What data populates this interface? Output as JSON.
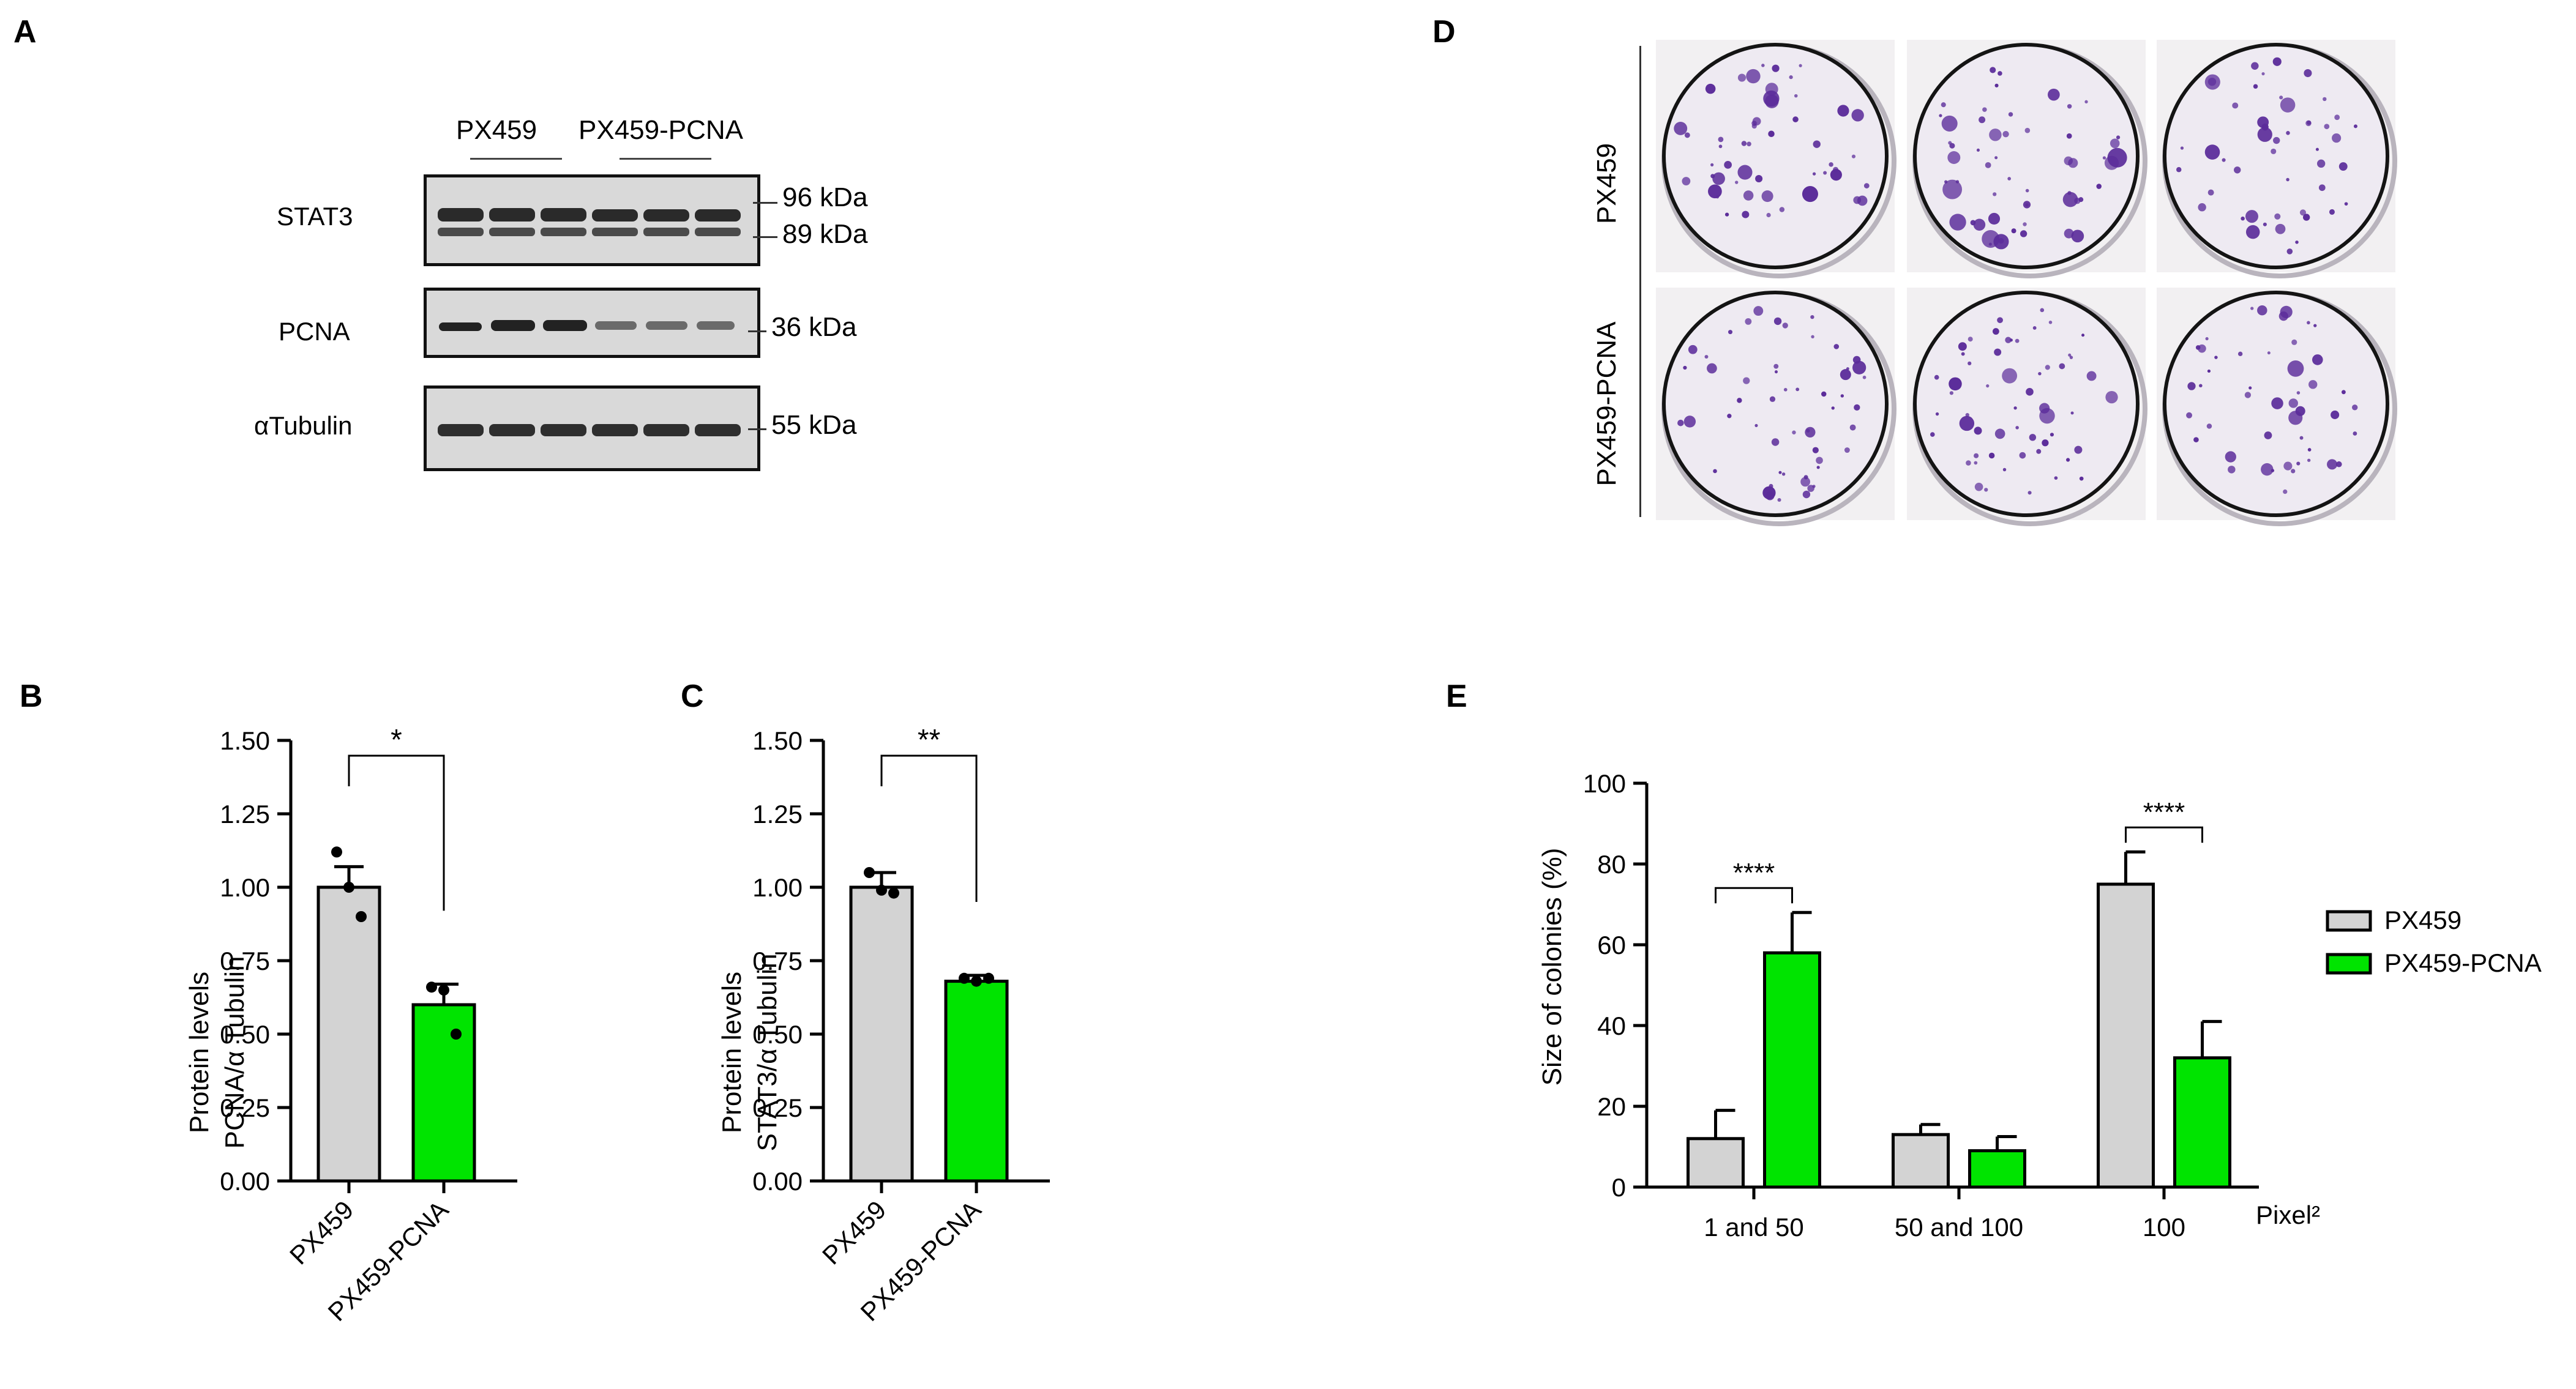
{
  "panels": {
    "a": "A",
    "b": "B",
    "c": "C",
    "d": "D",
    "e": "E"
  },
  "western_blot": {
    "lane_groups": [
      "PX459",
      "PX459-PCNA"
    ],
    "rows": [
      {
        "label": "STAT3",
        "markers": [
          "96 kDa",
          "89 kDa"
        ]
      },
      {
        "label": "PCNA",
        "markers": [
          "36 kDa"
        ]
      },
      {
        "label": "αTubulin",
        "markers": [
          "55 kDa"
        ]
      }
    ]
  },
  "colony_images": {
    "row_labels": [
      "PX459",
      "PX459-PCNA"
    ],
    "colors": {
      "plate_bg": "#eeeaf2",
      "colony": "#5b2c9a"
    }
  },
  "colors": {
    "px459": "#d3d3d3",
    "pcna": "#00e400",
    "outline": "#000000"
  },
  "chart_data": [
    {
      "type": "bar",
      "panel": "B",
      "categories": [
        "PX459",
        "PX459-PCNA"
      ],
      "values": [
        1.0,
        0.6
      ],
      "errors": [
        0.07,
        0.07
      ],
      "points": [
        [
          1.12,
          1.0,
          0.9
        ],
        [
          0.66,
          0.65,
          0.5
        ]
      ],
      "ylabel": [
        "Protein levels",
        "PCNA/α Tubulin"
      ],
      "ylim": [
        0,
        1.5
      ],
      "yticks": [
        "0.00",
        "0.25",
        "0.50",
        "0.75",
        "1.00",
        "1.25",
        "1.50"
      ],
      "significance": "*"
    },
    {
      "type": "bar",
      "panel": "C",
      "categories": [
        "PX459",
        "PX459-PCNA"
      ],
      "values": [
        1.0,
        0.68
      ],
      "errors": [
        0.05,
        0.02
      ],
      "points": [
        [
          1.05,
          0.99,
          0.98
        ],
        [
          0.69,
          0.68,
          0.69
        ]
      ],
      "ylabel": [
        "Protein levels",
        "STAT3/α Tubulin"
      ],
      "ylim": [
        0,
        1.5
      ],
      "yticks": [
        "0.00",
        "0.25",
        "0.50",
        "0.75",
        "1.00",
        "1.25",
        "1.50"
      ],
      "significance": "**"
    },
    {
      "type": "bar",
      "panel": "E",
      "categories": [
        "1 and 50",
        "50 and 100",
        "100"
      ],
      "x_unit": "Pixel²",
      "series": [
        {
          "name": "PX459",
          "values": [
            12,
            13,
            75
          ],
          "errors": [
            7,
            2.5,
            8
          ]
        },
        {
          "name": "PX459-PCNA",
          "values": [
            58,
            9,
            32
          ],
          "errors": [
            10,
            3.5,
            9
          ]
        }
      ],
      "ylabel": "Size of colonies (%)",
      "ylim": [
        0,
        100
      ],
      "yticks": [
        "0",
        "20",
        "40",
        "60",
        "80",
        "100"
      ],
      "significance": [
        "****",
        "",
        "****"
      ],
      "legend": "right"
    }
  ]
}
